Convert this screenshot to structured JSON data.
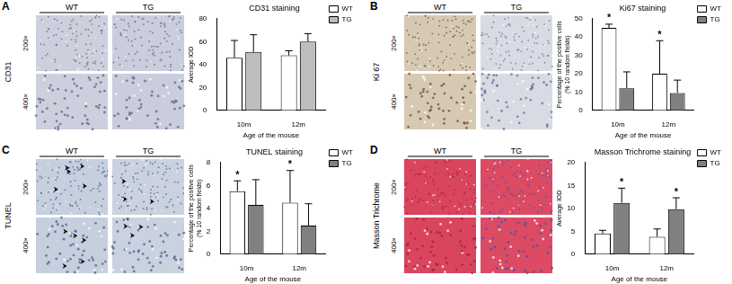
{
  "panels": [
    {
      "letter": "A",
      "stain": "CD31",
      "groups": [
        "WT",
        "TG"
      ],
      "magnifications": [
        "200×",
        "400×"
      ]
    },
    {
      "letter": "B",
      "stain": "Ki 67",
      "groups": [
        "WT",
        "TG"
      ],
      "magnifications": [
        "200×",
        "400×"
      ]
    },
    {
      "letter": "C",
      "stain": "TUNEL",
      "groups": [
        "WT",
        "TG"
      ],
      "magnifications": [
        "200×",
        "400×"
      ]
    },
    {
      "letter": "D",
      "stain": "Masson Trichrome",
      "groups": [
        "WT",
        "TG"
      ],
      "magnifications": [
        "200×",
        "400×"
      ]
    }
  ],
  "chart_data": [
    {
      "type": "bar",
      "title": "CD31 staining",
      "x_label": "Age of the mouse",
      "y_label": "Average IOD",
      "categories": [
        "10m",
        "12m"
      ],
      "series": [
        {
          "name": "WT",
          "color": "#ffffff",
          "values": [
            46,
            48
          ],
          "errors": [
            15,
            4
          ]
        },
        {
          "name": "TG",
          "color": "#bdbdbd",
          "values": [
            51,
            60
          ],
          "errors": [
            15,
            7
          ]
        }
      ],
      "ylim": [
        0,
        80
      ],
      "yticks": [
        0,
        20,
        40,
        60,
        80
      ],
      "grid": false,
      "legend": "right",
      "annotations": []
    },
    {
      "type": "bar",
      "title": "Ki67 staining",
      "x_label": "Age of the mouse",
      "y_label": [
        "Percentage of the positive cells",
        "(% 10 random fields)"
      ],
      "categories": [
        "10m",
        "12m"
      ],
      "series": [
        {
          "name": "WT",
          "color": "#ffffff",
          "values": [
            45,
            20
          ],
          "errors": [
            2,
            18
          ]
        },
        {
          "name": "TG",
          "color": "#808080",
          "values": [
            12,
            9.5
          ],
          "errors": [
            9,
            7
          ]
        }
      ],
      "ylim": [
        0,
        50
      ],
      "yticks": [
        0,
        10,
        20,
        30,
        40,
        50
      ],
      "grid": false,
      "legend": "right",
      "annotations": [
        {
          "text": "*",
          "series": "WT",
          "category": "10m"
        },
        {
          "text": "*",
          "series": "WT",
          "category": "12m"
        }
      ]
    },
    {
      "type": "bar",
      "title": "TUNEL staining",
      "x_label": "Age of the mouse",
      "y_label": [
        "Percentage of the positive cells",
        "(% 10 random fields)"
      ],
      "categories": [
        "10m",
        "12m"
      ],
      "series": [
        {
          "name": "WT",
          "color": "#ffffff",
          "values": [
            5.5,
            4.5
          ],
          "errors": [
            0.9,
            2.8
          ]
        },
        {
          "name": "TG",
          "color": "#808080",
          "values": [
            4.3,
            2.5
          ],
          "errors": [
            2.2,
            1.9
          ]
        }
      ],
      "ylim": [
        0,
        8
      ],
      "yticks": [
        0,
        2,
        4,
        6,
        8
      ],
      "grid": false,
      "legend": "right",
      "annotations": [
        {
          "text": "*",
          "series": "WT",
          "category": "10m"
        },
        {
          "text": "*",
          "series": "WT",
          "category": "12m"
        }
      ]
    },
    {
      "type": "bar",
      "title": "Masson Trichrome staining",
      "x_label": "Age of the mouse",
      "y_label": "Average IOD",
      "categories": [
        "10m",
        "12m"
      ],
      "series": [
        {
          "name": "WT",
          "color": "#ffffff",
          "values": [
            4.5,
            3.8
          ],
          "errors": [
            0.7,
            1.7
          ]
        },
        {
          "name": "TG",
          "color": "#808080",
          "values": [
            11.2,
            9.8
          ],
          "errors": [
            3.2,
            2.5
          ]
        }
      ],
      "ylim": [
        0,
        20
      ],
      "yticks": [
        0,
        5,
        10,
        15,
        20
      ],
      "grid": false,
      "legend": "right",
      "annotations": [
        {
          "text": "*",
          "series": "TG",
          "category": "10m"
        },
        {
          "text": "*",
          "series": "TG",
          "category": "12m"
        }
      ]
    }
  ]
}
